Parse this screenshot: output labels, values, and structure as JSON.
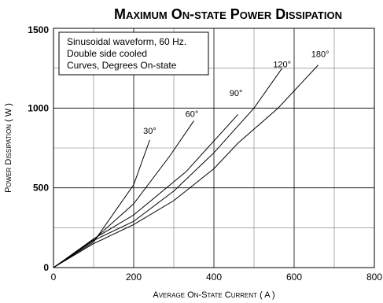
{
  "chart_data": {
    "type": "line",
    "title": "Maximum On-state Power Dissipation",
    "xlabel": "Average On-State Current ( A )",
    "ylabel": "Power Dissipation ( W )",
    "xlim": [
      0,
      800
    ],
    "ylim": [
      0,
      1500
    ],
    "x_ticks": [
      "0",
      "200",
      "400",
      "600",
      "800"
    ],
    "y_ticks": [
      "0",
      "500",
      "1000",
      "1500"
    ],
    "x_tick_values": [
      0,
      200,
      400,
      600,
      800
    ],
    "y_tick_values": [
      0,
      500,
      1000,
      1500
    ],
    "grid": true,
    "legend": "none",
    "notes": [
      "Sinusoidal waveform, 60 Hz.",
      "Double side cooled",
      "Curves, Degrees On-state"
    ],
    "series": [
      {
        "name": "30°",
        "label": "30°",
        "points": [
          [
            0,
            0
          ],
          [
            100,
            160
          ],
          [
            200,
            520
          ],
          [
            240,
            800
          ]
        ],
        "label_at": [
          240,
          840
        ]
      },
      {
        "name": "60°",
        "label": "60°",
        "points": [
          [
            0,
            0
          ],
          [
            100,
            175
          ],
          [
            200,
            400
          ],
          [
            290,
            700
          ],
          [
            350,
            920
          ]
        ],
        "label_at": [
          345,
          945
        ]
      },
      {
        "name": "90°",
        "label": "90°",
        "points": [
          [
            0,
            0
          ],
          [
            100,
            180
          ],
          [
            200,
            330
          ],
          [
            330,
            600
          ],
          [
            460,
            960
          ]
        ],
        "label_at": [
          455,
          1075
        ]
      },
      {
        "name": "120°",
        "label": "120°",
        "points": [
          [
            0,
            0
          ],
          [
            100,
            170
          ],
          [
            200,
            290
          ],
          [
            300,
            480
          ],
          [
            400,
            720
          ],
          [
            500,
            1000
          ],
          [
            570,
            1250
          ]
        ],
        "label_at": [
          570,
          1255
        ]
      },
      {
        "name": "180°",
        "label": "180°",
        "points": [
          [
            0,
            0
          ],
          [
            100,
            150
          ],
          [
            200,
            270
          ],
          [
            300,
            420
          ],
          [
            400,
            620
          ],
          [
            460,
            780
          ],
          [
            560,
            1000
          ],
          [
            660,
            1270
          ]
        ],
        "label_at": [
          665,
          1320
        ]
      }
    ]
  }
}
